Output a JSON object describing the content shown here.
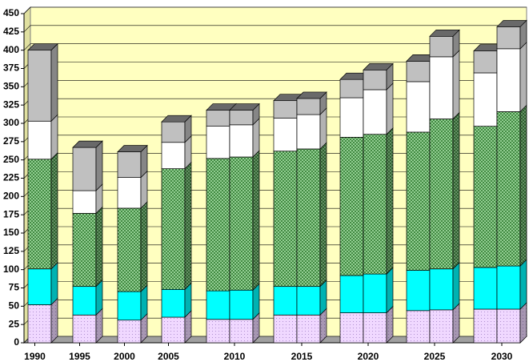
{
  "chart_data": {
    "type": "bar3d_stacked",
    "categories": [
      "1990",
      "1995",
      "2000",
      "2005",
      null,
      "2010",
      null,
      "2015",
      null,
      "2020",
      null,
      "2025",
      null,
      "2030"
    ],
    "series": [
      {
        "color": "#f0d8ff",
        "values": [
          52,
          38,
          31,
          35,
          32,
          32,
          38,
          38,
          41,
          41,
          44,
          45,
          46,
          46
        ]
      },
      {
        "color": "#00ffff",
        "values": [
          49,
          39,
          39,
          38,
          39,
          40,
          39,
          39,
          51,
          53,
          55,
          56,
          57,
          59
        ]
      },
      {
        "color": "#90c890",
        "values": [
          150,
          100,
          114,
          165,
          181,
          182,
          185,
          188,
          189,
          191,
          189,
          205,
          193,
          211
        ]
      },
      {
        "color": "#ffffff",
        "values": [
          52,
          31,
          42,
          36,
          44,
          44,
          45,
          47,
          54,
          61,
          69,
          85,
          73,
          86
        ]
      },
      {
        "color": "#c0c0c0",
        "values": [
          97,
          59,
          35,
          28,
          22,
          20,
          24,
          22,
          25,
          27,
          28,
          28,
          30,
          30
        ]
      }
    ],
    "ylim": [
      0,
      450
    ],
    "yticks": [
      0,
      25,
      50,
      75,
      100,
      125,
      150,
      175,
      200,
      225,
      250,
      275,
      300,
      325,
      350,
      375,
      400,
      425,
      450
    ],
    "grid": true
  }
}
